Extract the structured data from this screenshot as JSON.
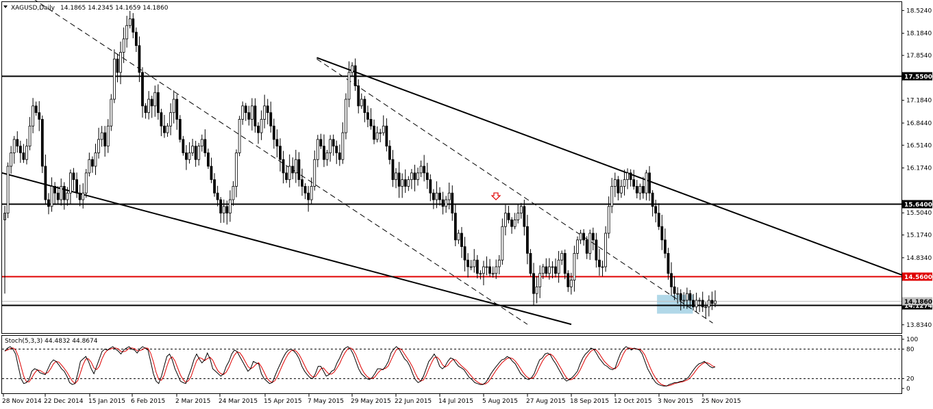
{
  "header": {
    "symbol": "XAGUSD,Daily",
    "ohlc": "14.1865 14.2345 14.1659 14.1860"
  },
  "stoch": {
    "label": "Stoch(5,3,3) 44.4832 44.8674",
    "colors": {
      "main": "#000000",
      "signal": "#e00000"
    },
    "levels": [
      "100",
      "80",
      "20",
      "0"
    ],
    "k": [
      76,
      82,
      85,
      80,
      70,
      45,
      20,
      10,
      12,
      18,
      35,
      40,
      38,
      32,
      30,
      28,
      40,
      52,
      58,
      55,
      48,
      40,
      35,
      25,
      12,
      8,
      10,
      30,
      55,
      60,
      65,
      55,
      40,
      30,
      45,
      60,
      75,
      80,
      78,
      82,
      85,
      80,
      76,
      70,
      78,
      82,
      85,
      80,
      78,
      72,
      80,
      85,
      82,
      78,
      55,
      30,
      15,
      10,
      25,
      45,
      65,
      70,
      58,
      40,
      28,
      15,
      12,
      10,
      25,
      40,
      58,
      70,
      60,
      52,
      58,
      72,
      60,
      40,
      35,
      30,
      25,
      30,
      45,
      55,
      70,
      78,
      75,
      65,
      55,
      45,
      35,
      40,
      55,
      52,
      50,
      30,
      20,
      15,
      10,
      12,
      25,
      38,
      50,
      62,
      72,
      78,
      80,
      76,
      70,
      60,
      45,
      35,
      28,
      22,
      20,
      30,
      45,
      45,
      35,
      25,
      28,
      35,
      38,
      52,
      62,
      75,
      82,
      85,
      80,
      70,
      55,
      40,
      30,
      25,
      20,
      18,
      22,
      30,
      40,
      40,
      38,
      45,
      55,
      72,
      80,
      85,
      80,
      70,
      60,
      55,
      45,
      30,
      18,
      12,
      15,
      25,
      40,
      55,
      62,
      70,
      60,
      45,
      40,
      45,
      55,
      62,
      60,
      52,
      45,
      42,
      38,
      30,
      22,
      18,
      12,
      10,
      8,
      8,
      12,
      20,
      30,
      38,
      45,
      52,
      58,
      60,
      65,
      62,
      55,
      50,
      40,
      30,
      25,
      20,
      18,
      22,
      30,
      45,
      58,
      62,
      70,
      72,
      68,
      58,
      50,
      40,
      30,
      20,
      15,
      18,
      22,
      28,
      35,
      50,
      62,
      70,
      75,
      82,
      80,
      72,
      62,
      55,
      48,
      45,
      40,
      38,
      42,
      58,
      72,
      80,
      85,
      82,
      78,
      82,
      80,
      78,
      70,
      55,
      40,
      30,
      20,
      12,
      8,
      6,
      5,
      5,
      8,
      10,
      12,
      12,
      14,
      15,
      18,
      22,
      30,
      38,
      45,
      50,
      52,
      55,
      50,
      45,
      42,
      44
    ],
    "d": []
  },
  "chart_data": {
    "type": "candlestick",
    "title": "XAGUSD,Daily",
    "symbol": "XAGUSD",
    "timeframe": "Daily",
    "last_ohlc": {
      "open": 14.1865,
      "high": 14.2345,
      "low": 14.1659,
      "close": 14.186
    },
    "ylim": [
      13.71,
      18.65
    ],
    "yticks": [
      "18.5240",
      "18.1840",
      "17.8540",
      "17.1840",
      "16.8440",
      "16.5140",
      "16.1740",
      "15.5040",
      "15.1740",
      "14.8340",
      "13.8340"
    ],
    "xticks": [
      "28 Nov 2014",
      "22 Dec 2014",
      "15 Jan 2015",
      "6 Feb 2015",
      "2 Mar 2015",
      "24 Mar 2015",
      "15 Apr 2015",
      "7 May 2015",
      "29 May 2015",
      "22 Jun 2015",
      "14 Jul 2015",
      "5 Aug 2015",
      "27 Aug 2015",
      "18 Sep 2015",
      "12 Oct 2015",
      "3 Nov 2015",
      "25 Nov 2015"
    ],
    "levels": [
      {
        "label": "17.5500",
        "value": 17.55,
        "color": "#000000"
      },
      {
        "label": "15.6400",
        "value": 15.64,
        "color": "#000000"
      },
      {
        "label": "14.5600",
        "value": 14.56,
        "color": "#e00000"
      },
      {
        "label": "14.1274",
        "value": 14.1274,
        "color": "#000000"
      },
      {
        "label": "14.1860",
        "value": 14.186,
        "color": "#c0c0c0"
      }
    ],
    "colors": {
      "bull": "#ffffff",
      "bear": "#000000",
      "wick": "#000000",
      "highlight": "#a8d4e6"
    },
    "closes": [
      15.5,
      16.2,
      16.4,
      16.6,
      16.5,
      16.4,
      16.3,
      16.5,
      16.8,
      17.1,
      17.0,
      16.9,
      16.2,
      15.7,
      15.6,
      15.9,
      15.8,
      15.7,
      15.9,
      15.7,
      15.8,
      16.1,
      16.0,
      15.8,
      15.7,
      15.8,
      16.1,
      16.3,
      16.2,
      16.4,
      16.6,
      16.7,
      16.5,
      16.8,
      17.2,
      17.8,
      17.6,
      17.9,
      18.1,
      18.3,
      18.4,
      18.2,
      18.0,
      17.6,
      17.1,
      17.0,
      17.2,
      17.1,
      17.3,
      17.0,
      16.8,
      16.7,
      16.8,
      17.0,
      17.2,
      16.9,
      16.6,
      16.4,
      16.3,
      16.4,
      16.5,
      16.3,
      16.5,
      16.6,
      16.4,
      16.2,
      16.0,
      15.8,
      15.7,
      15.5,
      15.6,
      15.5,
      15.7,
      15.9,
      16.4,
      16.9,
      17.1,
      17.0,
      16.9,
      17.1,
      16.8,
      16.7,
      16.9,
      17.1,
      17.0,
      16.8,
      16.6,
      16.5,
      16.3,
      16.1,
      16.0,
      16.2,
      16.1,
      16.3,
      16.0,
      15.9,
      15.8,
      15.7,
      15.9,
      16.3,
      16.6,
      16.5,
      16.3,
      16.4,
      16.6,
      16.5,
      16.4,
      16.3,
      16.7,
      17.2,
      17.6,
      17.7,
      17.4,
      17.1,
      17.2,
      17.0,
      16.9,
      16.8,
      16.6,
      16.7,
      16.7,
      16.8,
      16.5,
      16.3,
      16.0,
      16.1,
      15.9,
      16.0,
      15.9,
      16.0,
      16.1,
      16.0,
      16.1,
      16.2,
      16.1,
      16.0,
      15.8,
      15.7,
      15.8,
      15.7,
      15.6,
      15.7,
      15.8,
      15.5,
      15.1,
      15.2,
      15.0,
      14.8,
      14.7,
      14.7,
      14.8,
      14.6,
      14.6,
      14.7,
      14.7,
      14.6,
      14.6,
      14.7,
      14.8,
      15.3,
      15.5,
      15.4,
      15.3,
      15.4,
      15.5,
      15.6,
      15.3,
      14.9,
      14.6,
      14.3,
      14.4,
      14.6,
      14.7,
      14.6,
      14.7,
      14.7,
      14.6,
      14.8,
      14.9,
      14.6,
      14.4,
      14.5,
      14.9,
      15.1,
      15.2,
      15.1,
      14.9,
      15.2,
      15.1,
      14.8,
      14.7,
      14.7,
      15.2,
      15.6,
      15.9,
      16.0,
      15.8,
      15.9,
      16.0,
      16.1,
      16.0,
      15.9,
      15.8,
      15.9,
      15.8,
      16.1,
      15.8,
      15.6,
      15.5,
      15.3,
      15.1,
      14.9,
      14.6,
      14.4,
      14.3,
      14.3,
      14.2,
      14.2,
      14.3,
      14.2,
      14.1,
      14.2,
      14.2,
      14.1,
      14.1,
      14.2,
      14.15,
      14.19
    ],
    "trendlines": [
      {
        "style": "solid",
        "from": [
          "2015-05-11",
          17.82
        ],
        "to": [
          "right-edge",
          14.58
        ]
      },
      {
        "style": "solid",
        "from": [
          "left-edge",
          16.1
        ],
        "to": [
          "2015-09-18",
          13.84
        ]
      },
      {
        "style": "dashed",
        "from": [
          "2014-12-15",
          18.7
        ],
        "to": [
          "2015-08-27",
          13.84
        ]
      },
      {
        "style": "dashed",
        "from": [
          "2015-05-11",
          17.8
        ],
        "to": [
          "2015-11-30",
          13.86
        ]
      }
    ],
    "arrow_marker": {
      "date": "2015-08-05",
      "price": 15.72
    },
    "highlight_zone": {
      "from": "2015-11-02",
      "to": "2015-11-20",
      "top": 14.28,
      "bottom": 14.0
    }
  }
}
